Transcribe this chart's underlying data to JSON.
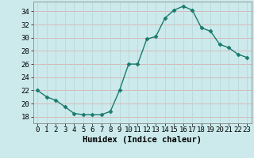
{
  "x": [
    0,
    1,
    2,
    3,
    4,
    5,
    6,
    7,
    8,
    9,
    10,
    11,
    12,
    13,
    14,
    15,
    16,
    17,
    18,
    19,
    20,
    21,
    22,
    23
  ],
  "y": [
    22,
    21,
    20.5,
    19.5,
    18.5,
    18.3,
    18.3,
    18.3,
    18.8,
    22,
    26,
    26,
    29.8,
    30.2,
    33,
    34.2,
    34.8,
    34.2,
    31.5,
    31,
    29,
    28.5,
    27.5,
    27
  ],
  "line_color": "#1a7a6e",
  "marker": "D",
  "marker_size": 2.5,
  "bg_color": "#cceaec",
  "hgrid_color": "#d9b0b0",
  "vgrid_color": "#b8d8da",
  "xlabel": "Humidex (Indice chaleur)",
  "ylim": [
    17,
    35.5
  ],
  "xlim": [
    -0.5,
    23.5
  ],
  "yticks": [
    18,
    20,
    22,
    24,
    26,
    28,
    30,
    32,
    34
  ],
  "xticks": [
    0,
    1,
    2,
    3,
    4,
    5,
    6,
    7,
    8,
    9,
    10,
    11,
    12,
    13,
    14,
    15,
    16,
    17,
    18,
    19,
    20,
    21,
    22,
    23
  ],
  "tick_fontsize": 6.5,
  "xlabel_fontsize": 7.5,
  "spine_color": "#888888"
}
